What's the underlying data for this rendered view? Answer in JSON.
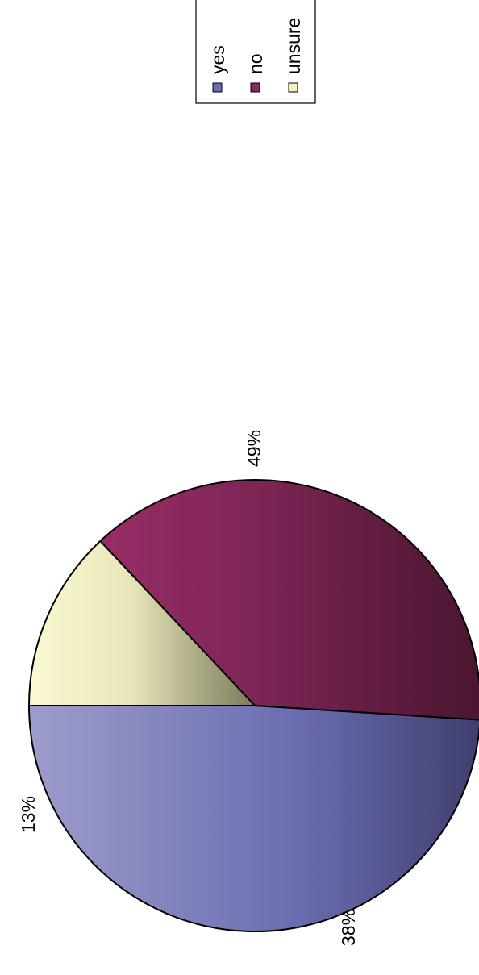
{
  "chart_data": {
    "type": "pie",
    "categories": [
      "yes",
      "no",
      "unsure"
    ],
    "values": [
      49,
      38,
      13
    ],
    "labels": [
      "49%",
      "38%",
      "13%"
    ],
    "colors": [
      "#6a6cb0",
      "#8a2a62",
      "#f4f2c4"
    ],
    "legend": {
      "position": "top-right",
      "entries": [
        "yes",
        "no",
        "unsure"
      ]
    }
  }
}
